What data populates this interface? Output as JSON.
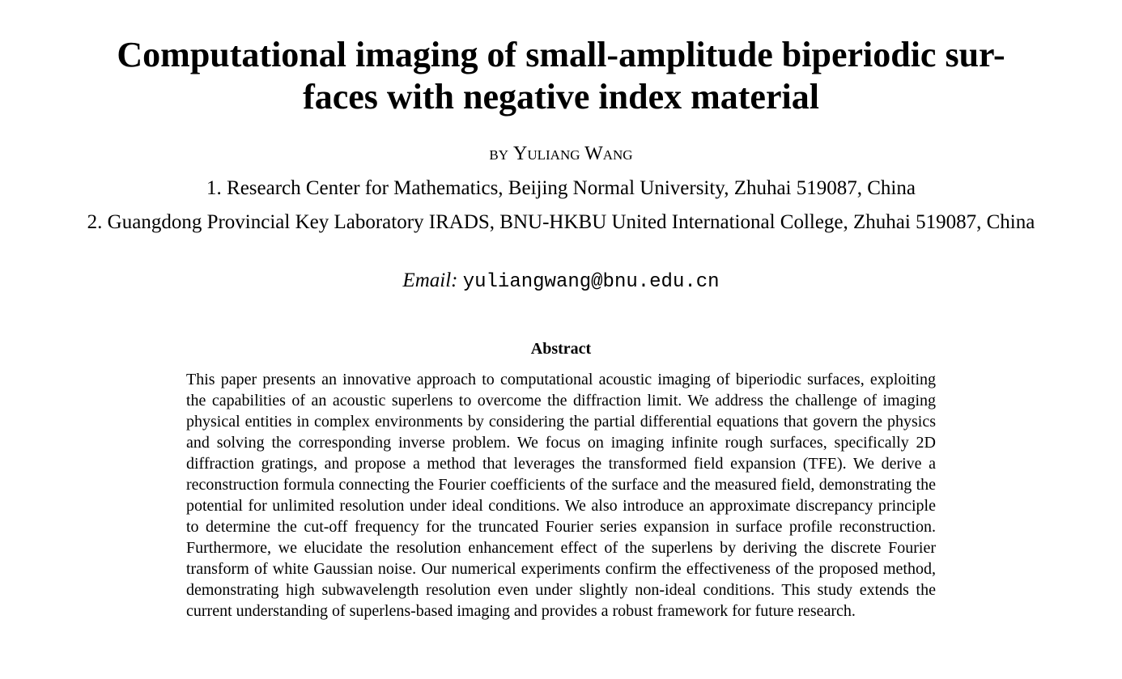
{
  "paper": {
    "title": "Computational imaging of small-amplitude biperiodic sur-faces with negative index material",
    "title_line1": "Computational imaging of small-amplitude biperiodic sur-",
    "title_line2": "faces with negative index material",
    "author_prefix": "by",
    "author_name": "Yuliang Wang",
    "affiliations": [
      "1. Research Center for Mathematics, Beijing Normal University, Zhuhai 519087, China",
      "2. Guangdong Provincial Key Laboratory IRADS, BNU-HKBU United International College, Zhuhai 519087, China"
    ],
    "email_label": "Email:",
    "email_address": "yuliangwang@bnu.edu.cn",
    "abstract_heading": "Abstract",
    "abstract_text": "This paper presents an innovative approach to computational acoustic imaging of biperiodic surfaces, exploiting the capabilities of an acoustic superlens to overcome the diffraction limit.  We address the challenge of imaging physical entities in complex environments by considering the partial differential equations that govern the physics and solving the corresponding inverse problem.  We focus on imaging infinite rough surfaces, specifically 2D diffraction gratings, and propose a method that leverages the transformed field expansion (TFE). We derive a reconstruction formula connecting the Fourier coefficients of the surface and the measured field, demonstrating the potential for unlimited resolution under ideal conditions.  We also introduce an approximate discrepancy principle to determine the cut-off frequency for the truncated Fourier series expansion in surface profile reconstruction.  Furthermore, we elucidate the resolution enhancement effect of the superlens by deriving the discrete Fourier transform of white Gaussian noise.  Our numerical experiments confirm the effectiveness of the proposed method, demonstrating high subwavelength resolution even under slightly non-ideal conditions.  This study extends the current understanding of superlens-based imaging and provides a robust framework for future research."
  }
}
